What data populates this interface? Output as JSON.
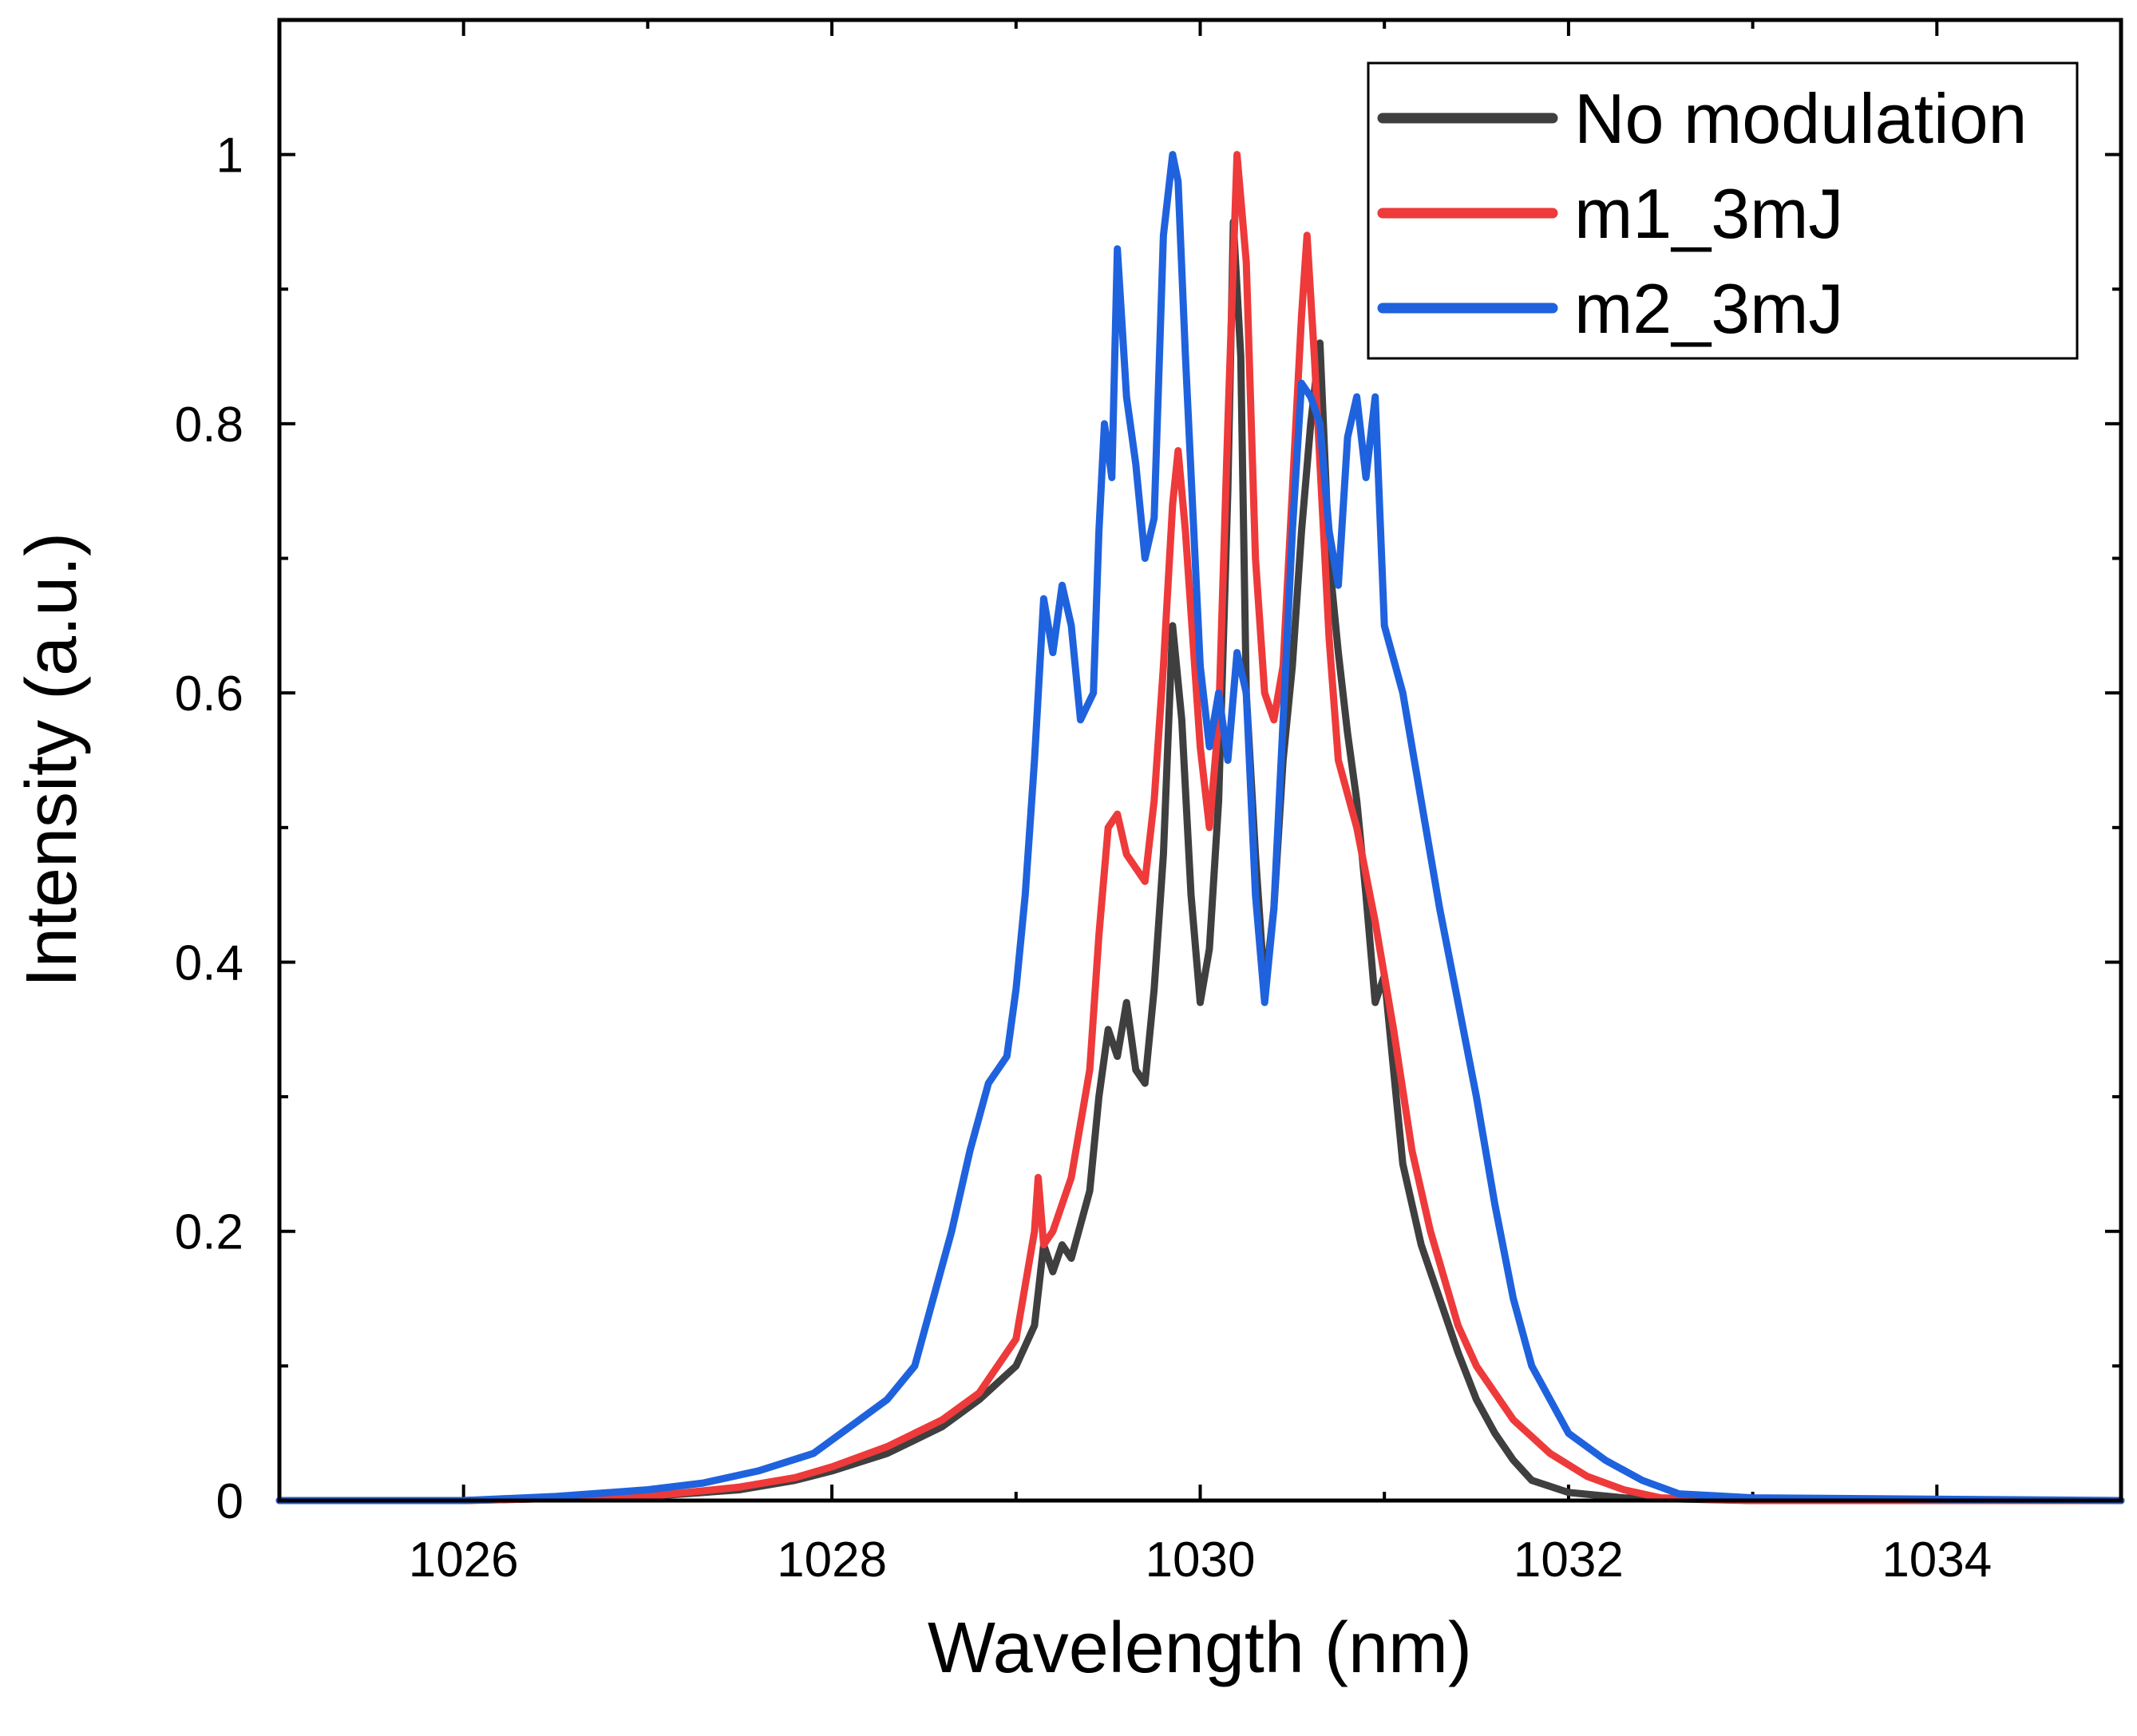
{
  "chart_data": {
    "type": "line",
    "title": "",
    "xlabel": "Wavelength (nm)",
    "ylabel": "Intensity (a.u.)",
    "xlim": [
      1025,
      1035
    ],
    "ylim": [
      0,
      1.1
    ],
    "xticks": [
      1026,
      1028,
      1030,
      1032,
      1034
    ],
    "xtick_labels": [
      "1026",
      "1028",
      "1030",
      "1032",
      "1034"
    ],
    "yticks": [
      0,
      0.2,
      0.4,
      0.6,
      0.8,
      1
    ],
    "ytick_labels": [
      "0",
      "0.2",
      "0.4",
      "0.6",
      "0.8",
      "1"
    ],
    "grid": false,
    "legend_position": "top-right",
    "series": [
      {
        "name": "No modulation",
        "color": "#3f3f3f",
        "points": [
          [
            1025.0,
            0.0
          ],
          [
            1026.0,
            0.0
          ],
          [
            1027.0,
            0.003
          ],
          [
            1027.5,
            0.008
          ],
          [
            1027.8,
            0.015
          ],
          [
            1028.0,
            0.022
          ],
          [
            1028.3,
            0.035
          ],
          [
            1028.6,
            0.055
          ],
          [
            1028.8,
            0.075
          ],
          [
            1029.0,
            0.1
          ],
          [
            1029.1,
            0.13
          ],
          [
            1029.15,
            0.19
          ],
          [
            1029.2,
            0.17
          ],
          [
            1029.25,
            0.19
          ],
          [
            1029.3,
            0.18
          ],
          [
            1029.4,
            0.23
          ],
          [
            1029.45,
            0.3
          ],
          [
            1029.5,
            0.35
          ],
          [
            1029.55,
            0.33
          ],
          [
            1029.6,
            0.37
          ],
          [
            1029.65,
            0.32
          ],
          [
            1029.7,
            0.31
          ],
          [
            1029.75,
            0.38
          ],
          [
            1029.8,
            0.48
          ],
          [
            1029.85,
            0.65
          ],
          [
            1029.9,
            0.58
          ],
          [
            1029.95,
            0.45
          ],
          [
            1030.0,
            0.37
          ],
          [
            1030.05,
            0.41
          ],
          [
            1030.1,
            0.52
          ],
          [
            1030.15,
            0.75
          ],
          [
            1030.18,
            0.95
          ],
          [
            1030.22,
            0.85
          ],
          [
            1030.25,
            0.6
          ],
          [
            1030.3,
            0.48
          ],
          [
            1030.35,
            0.38
          ],
          [
            1030.4,
            0.44
          ],
          [
            1030.45,
            0.55
          ],
          [
            1030.5,
            0.62
          ],
          [
            1030.55,
            0.72
          ],
          [
            1030.6,
            0.8
          ],
          [
            1030.65,
            0.86
          ],
          [
            1030.7,
            0.7
          ],
          [
            1030.75,
            0.63
          ],
          [
            1030.8,
            0.57
          ],
          [
            1030.85,
            0.52
          ],
          [
            1030.9,
            0.45
          ],
          [
            1030.95,
            0.37
          ],
          [
            1031.0,
            0.39
          ],
          [
            1031.05,
            0.32
          ],
          [
            1031.1,
            0.25
          ],
          [
            1031.2,
            0.19
          ],
          [
            1031.3,
            0.15
          ],
          [
            1031.4,
            0.11
          ],
          [
            1031.5,
            0.075
          ],
          [
            1031.6,
            0.05
          ],
          [
            1031.7,
            0.03
          ],
          [
            1031.8,
            0.015
          ],
          [
            1032.0,
            0.006
          ],
          [
            1032.3,
            0.002
          ],
          [
            1033.0,
            0.0
          ],
          [
            1035.0,
            0.0
          ]
        ]
      },
      {
        "name": "m1_3mJ",
        "color": "#ee3a3a",
        "points": [
          [
            1025.0,
            0.0
          ],
          [
            1026.0,
            0.0
          ],
          [
            1027.0,
            0.003
          ],
          [
            1027.5,
            0.01
          ],
          [
            1027.8,
            0.017
          ],
          [
            1028.0,
            0.025
          ],
          [
            1028.3,
            0.04
          ],
          [
            1028.6,
            0.06
          ],
          [
            1028.8,
            0.08
          ],
          [
            1029.0,
            0.12
          ],
          [
            1029.05,
            0.16
          ],
          [
            1029.1,
            0.2
          ],
          [
            1029.12,
            0.24
          ],
          [
            1029.15,
            0.19
          ],
          [
            1029.2,
            0.2
          ],
          [
            1029.3,
            0.24
          ],
          [
            1029.4,
            0.32
          ],
          [
            1029.45,
            0.42
          ],
          [
            1029.5,
            0.5
          ],
          [
            1029.55,
            0.51
          ],
          [
            1029.6,
            0.48
          ],
          [
            1029.7,
            0.46
          ],
          [
            1029.75,
            0.52
          ],
          [
            1029.8,
            0.62
          ],
          [
            1029.85,
            0.74
          ],
          [
            1029.88,
            0.78
          ],
          [
            1029.92,
            0.72
          ],
          [
            1030.0,
            0.56
          ],
          [
            1030.05,
            0.5
          ],
          [
            1030.1,
            0.58
          ],
          [
            1030.15,
            0.8
          ],
          [
            1030.2,
            1.0
          ],
          [
            1030.25,
            0.92
          ],
          [
            1030.3,
            0.7
          ],
          [
            1030.35,
            0.6
          ],
          [
            1030.4,
            0.58
          ],
          [
            1030.45,
            0.62
          ],
          [
            1030.5,
            0.75
          ],
          [
            1030.55,
            0.88
          ],
          [
            1030.58,
            0.94
          ],
          [
            1030.62,
            0.85
          ],
          [
            1030.7,
            0.64
          ],
          [
            1030.75,
            0.55
          ],
          [
            1030.85,
            0.5
          ],
          [
            1030.95,
            0.43
          ],
          [
            1031.05,
            0.35
          ],
          [
            1031.15,
            0.26
          ],
          [
            1031.25,
            0.2
          ],
          [
            1031.4,
            0.13
          ],
          [
            1031.5,
            0.1
          ],
          [
            1031.7,
            0.06
          ],
          [
            1031.9,
            0.035
          ],
          [
            1032.1,
            0.018
          ],
          [
            1032.3,
            0.008
          ],
          [
            1032.5,
            0.002
          ],
          [
            1033.0,
            0.0
          ],
          [
            1035.0,
            0.0
          ]
        ]
      },
      {
        "name": "m2_3mJ",
        "color": "#1f62de",
        "points": [
          [
            1025.0,
            0.0
          ],
          [
            1026.0,
            0.0
          ],
          [
            1026.5,
            0.003
          ],
          [
            1027.0,
            0.008
          ],
          [
            1027.3,
            0.013
          ],
          [
            1027.6,
            0.022
          ],
          [
            1027.9,
            0.035
          ],
          [
            1028.1,
            0.055
          ],
          [
            1028.3,
            0.075
          ],
          [
            1028.45,
            0.1
          ],
          [
            1028.55,
            0.15
          ],
          [
            1028.65,
            0.2
          ],
          [
            1028.75,
            0.26
          ],
          [
            1028.85,
            0.31
          ],
          [
            1028.95,
            0.33
          ],
          [
            1029.0,
            0.38
          ],
          [
            1029.05,
            0.45
          ],
          [
            1029.1,
            0.55
          ],
          [
            1029.15,
            0.67
          ],
          [
            1029.2,
            0.63
          ],
          [
            1029.25,
            0.68
          ],
          [
            1029.3,
            0.65
          ],
          [
            1029.35,
            0.58
          ],
          [
            1029.42,
            0.6
          ],
          [
            1029.45,
            0.72
          ],
          [
            1029.48,
            0.8
          ],
          [
            1029.52,
            0.76
          ],
          [
            1029.55,
            0.93
          ],
          [
            1029.6,
            0.82
          ],
          [
            1029.65,
            0.77
          ],
          [
            1029.7,
            0.7
          ],
          [
            1029.75,
            0.73
          ],
          [
            1029.8,
            0.94
          ],
          [
            1029.85,
            1.0
          ],
          [
            1029.88,
            0.98
          ],
          [
            1029.92,
            0.85
          ],
          [
            1030.0,
            0.62
          ],
          [
            1030.05,
            0.56
          ],
          [
            1030.1,
            0.6
          ],
          [
            1030.15,
            0.55
          ],
          [
            1030.2,
            0.63
          ],
          [
            1030.25,
            0.6
          ],
          [
            1030.3,
            0.45
          ],
          [
            1030.35,
            0.37
          ],
          [
            1030.4,
            0.44
          ],
          [
            1030.5,
            0.72
          ],
          [
            1030.55,
            0.83
          ],
          [
            1030.6,
            0.82
          ],
          [
            1030.65,
            0.8
          ],
          [
            1030.7,
            0.72
          ],
          [
            1030.75,
            0.68
          ],
          [
            1030.8,
            0.79
          ],
          [
            1030.85,
            0.82
          ],
          [
            1030.9,
            0.76
          ],
          [
            1030.95,
            0.82
          ],
          [
            1031.0,
            0.65
          ],
          [
            1031.1,
            0.6
          ],
          [
            1031.2,
            0.52
          ],
          [
            1031.3,
            0.44
          ],
          [
            1031.4,
            0.37
          ],
          [
            1031.5,
            0.3
          ],
          [
            1031.6,
            0.22
          ],
          [
            1031.7,
            0.15
          ],
          [
            1031.8,
            0.1
          ],
          [
            1031.9,
            0.075
          ],
          [
            1032.0,
            0.05
          ],
          [
            1032.2,
            0.03
          ],
          [
            1032.4,
            0.015
          ],
          [
            1032.6,
            0.005
          ],
          [
            1033.0,
            0.002
          ],
          [
            1035.0,
            0.0
          ]
        ]
      }
    ]
  }
}
